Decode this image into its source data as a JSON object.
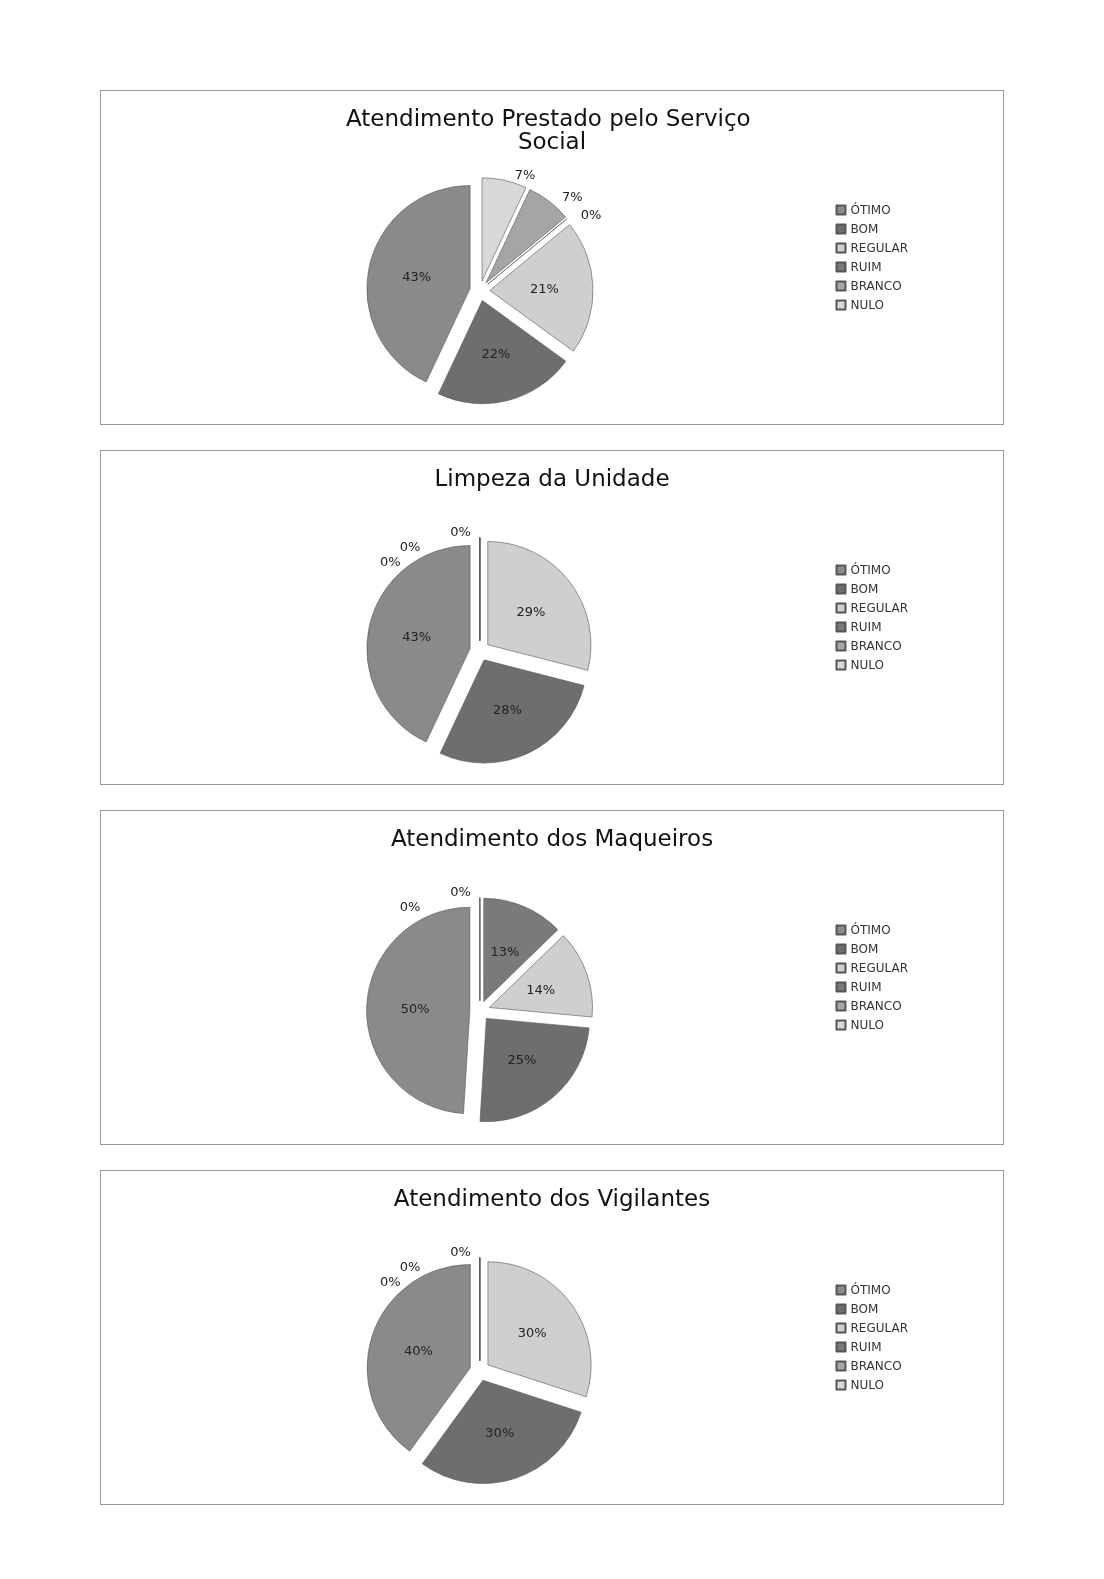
{
  "chart_data": [
    {
      "type": "pie",
      "title": "Atendimento Prestado pelo Serviço Social",
      "categories": [
        "ÓTIMO",
        "BOM",
        "REGULAR",
        "RUIM",
        "BRANCO",
        "NULO"
      ],
      "values": [
        43,
        22,
        21,
        0,
        7,
        7
      ],
      "value_labels": [
        "43%",
        "22%",
        "21%",
        "0%",
        "7%",
        "7%"
      ],
      "colors": [
        "#8a8a8a",
        "#6e6e6e",
        "#cfcfcf",
        "#7a7a7a",
        "#a5a5a5",
        "#d8d8d8"
      ],
      "legend": "right"
    },
    {
      "type": "pie",
      "title": "Limpeza da Unidade",
      "categories": [
        "ÓTIMO",
        "BOM",
        "REGULAR",
        "RUIM",
        "BRANCO",
        "NULO"
      ],
      "values": [
        43,
        28,
        29,
        0,
        0,
        0
      ],
      "value_labels": [
        "43%",
        "28%",
        "29%",
        "0%",
        "0%",
        "0%"
      ],
      "colors": [
        "#8a8a8a",
        "#6e6e6e",
        "#cfcfcf",
        "#7a7a7a",
        "#a5a5a5",
        "#d8d8d8"
      ],
      "legend": "right"
    },
    {
      "type": "pie",
      "title": "Atendimento dos Maqueiros",
      "categories": [
        "ÓTIMO",
        "BOM",
        "REGULAR",
        "RUIM",
        "BRANCO",
        "NULO"
      ],
      "values": [
        50,
        25,
        14,
        13,
        0,
        0
      ],
      "value_labels": [
        "50%",
        "25%",
        "14%",
        "13%",
        "0%",
        "0%"
      ],
      "colors": [
        "#8a8a8a",
        "#6e6e6e",
        "#cfcfcf",
        "#7a7a7a",
        "#a5a5a5",
        "#d8d8d8"
      ],
      "legend": "right"
    },
    {
      "type": "pie",
      "title": "Atendimento dos Vigilantes",
      "categories": [
        "ÓTIMO",
        "BOM",
        "REGULAR",
        "RUIM",
        "BRANCO",
        "NULO"
      ],
      "values": [
        40,
        30,
        30,
        0,
        0,
        0
      ],
      "value_labels": [
        "40%",
        "30%",
        "30%",
        "0%",
        "0%",
        "0%"
      ],
      "colors": [
        "#8a8a8a",
        "#6e6e6e",
        "#cfcfcf",
        "#7a7a7a",
        "#a5a5a5",
        "#d8d8d8"
      ],
      "legend": "right"
    }
  ]
}
